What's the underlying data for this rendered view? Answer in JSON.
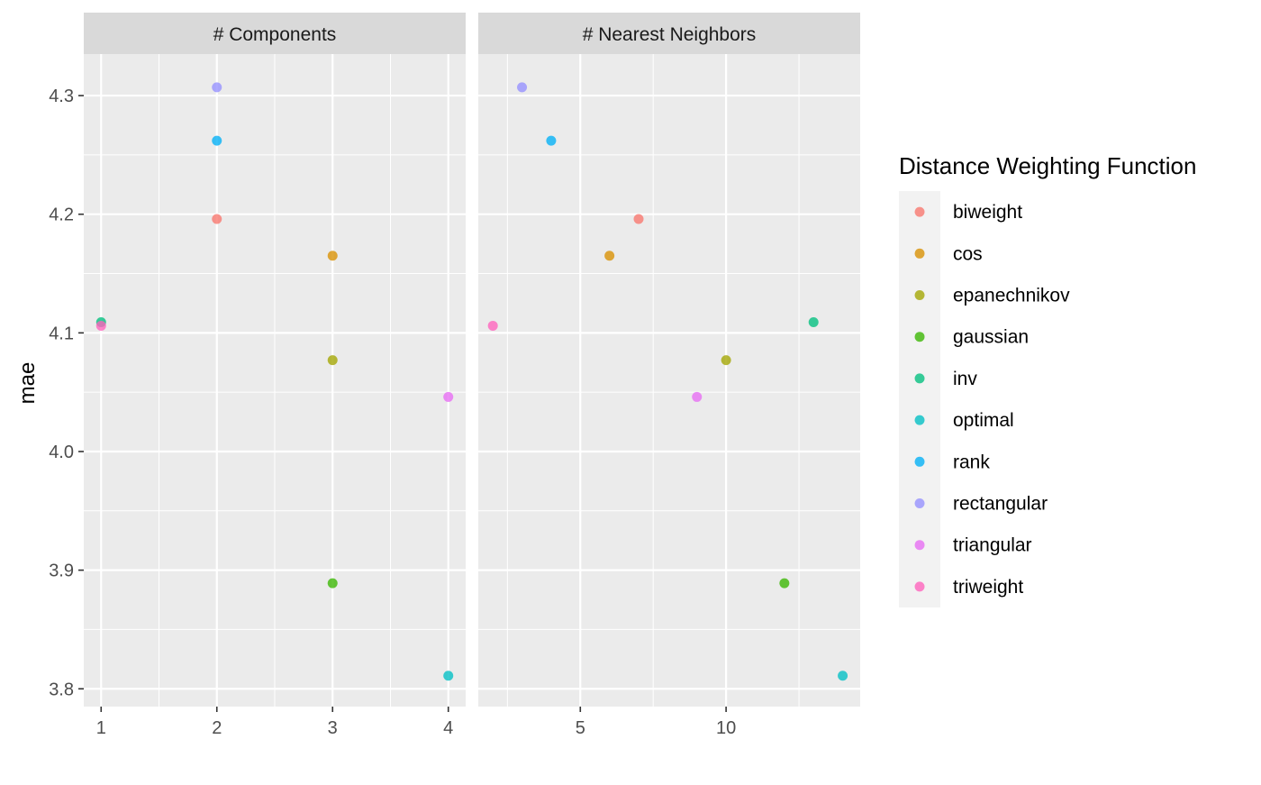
{
  "chart_data": {
    "type": "scatter",
    "ylabel": "mae",
    "ylim": [
      3.785,
      4.335
    ],
    "y_ticks": [
      3.8,
      3.9,
      4.0,
      4.1,
      4.2,
      4.3
    ],
    "y_tick_labels": [
      "3.8",
      "3.9",
      "4.0",
      "4.1",
      "4.2",
      "4.3"
    ],
    "grid": true,
    "legend": {
      "title": "Distance Weighting Function",
      "position": "right",
      "items": [
        {
          "label": "biweight",
          "color": "#F8766D"
        },
        {
          "label": "cos",
          "color": "#D89000"
        },
        {
          "label": "epanechnikov",
          "color": "#A3A500"
        },
        {
          "label": "gaussian",
          "color": "#39B600"
        },
        {
          "label": "inv",
          "color": "#00BF7D"
        },
        {
          "label": "optimal",
          "color": "#00BFC4"
        },
        {
          "label": "rank",
          "color": "#00B0F6"
        },
        {
          "label": "rectangular",
          "color": "#9590FF"
        },
        {
          "label": "triangular",
          "color": "#E76BF3"
        },
        {
          "label": "triweight",
          "color": "#FF62BC"
        }
      ]
    },
    "panels": [
      {
        "title": "# Components",
        "xlim": [
          0.85,
          4.15
        ],
        "x_ticks": [
          1,
          2,
          3,
          4
        ],
        "x_tick_labels": [
          "1",
          "2",
          "3",
          "4"
        ],
        "x_minor": [
          1.5,
          2.5,
          3.5
        ],
        "points": [
          {
            "series": "biweight",
            "x": 2,
            "y": 4.196
          },
          {
            "series": "cos",
            "x": 3,
            "y": 4.165
          },
          {
            "series": "epanechnikov",
            "x": 3,
            "y": 4.077
          },
          {
            "series": "gaussian",
            "x": 3,
            "y": 3.889
          },
          {
            "series": "inv",
            "x": 1,
            "y": 4.109
          },
          {
            "series": "optimal",
            "x": 4,
            "y": 3.811
          },
          {
            "series": "rank",
            "x": 2,
            "y": 4.262
          },
          {
            "series": "rectangular",
            "x": 2,
            "y": 4.307
          },
          {
            "series": "triangular",
            "x": 4,
            "y": 4.046
          },
          {
            "series": "triweight",
            "x": 1,
            "y": 4.106
          }
        ]
      },
      {
        "title": "# Nearest Neighbors",
        "xlim": [
          1.5,
          14.6
        ],
        "x_ticks": [
          5,
          10
        ],
        "x_tick_labels": [
          "5",
          "10"
        ],
        "x_minor": [
          2.5,
          7.5,
          12.5
        ],
        "points": [
          {
            "series": "biweight",
            "x": 7,
            "y": 4.196
          },
          {
            "series": "cos",
            "x": 6,
            "y": 4.165
          },
          {
            "series": "epanechnikov",
            "x": 10,
            "y": 4.077
          },
          {
            "series": "gaussian",
            "x": 12,
            "y": 3.889
          },
          {
            "series": "inv",
            "x": 13,
            "y": 4.109
          },
          {
            "series": "optimal",
            "x": 14,
            "y": 3.811
          },
          {
            "series": "rank",
            "x": 4,
            "y": 4.262
          },
          {
            "series": "rectangular",
            "x": 3,
            "y": 4.307
          },
          {
            "series": "triangular",
            "x": 9,
            "y": 4.046
          },
          {
            "series": "triweight",
            "x": 2,
            "y": 4.106
          }
        ]
      }
    ]
  }
}
